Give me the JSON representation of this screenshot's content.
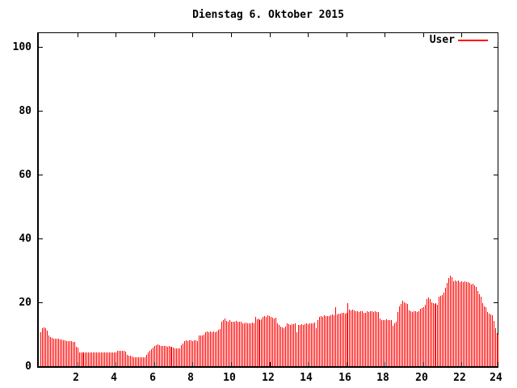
{
  "title": "Dienstag 6. Oktober 2015",
  "legend": {
    "label": "User",
    "color": "#ff0000"
  },
  "colors": {
    "bar": "#ff0000",
    "axis": "#000000",
    "background": "#ffffff"
  },
  "axes": {
    "x": {
      "min": 0,
      "max": 24,
      "ticks": [
        2,
        4,
        6,
        8,
        10,
        12,
        14,
        16,
        18,
        20,
        22,
        24
      ]
    },
    "y": {
      "min": 0,
      "max": 100,
      "ticks": [
        0,
        20,
        40,
        60,
        80,
        100
      ]
    }
  },
  "chart_data": {
    "type": "bar",
    "title": "Dienstag 6. Oktober 2015",
    "xlabel": "",
    "ylabel": "",
    "xlim": [
      0,
      24
    ],
    "ylim": [
      0,
      105
    ],
    "grid": false,
    "legend_position": "top-right-inside",
    "x_unit": "hour_of_day",
    "x_start_hour": 0.0833,
    "x_step_hour": 0.0833,
    "series": [
      {
        "name": "User",
        "color": "#ff0000",
        "values_by_hour": [
          [
            10.5,
            12.0,
            12.2,
            12.0,
            11.0,
            9.5,
            9.2,
            8.8,
            8.7,
            8.6,
            8.5,
            8.5
          ],
          [
            8.4,
            8.3,
            8.2,
            8.0,
            7.9,
            7.8,
            7.8,
            7.9,
            7.7,
            7.6,
            6.0,
            5.7
          ],
          [
            4.3,
            4.2,
            4.2,
            4.3,
            4.2,
            4.2,
            4.2,
            4.3,
            4.2,
            4.2,
            4.3,
            4.2
          ],
          [
            4.2,
            4.3,
            4.2,
            4.2,
            4.3,
            4.2,
            4.2,
            4.2,
            4.3,
            4.2,
            4.2,
            4.3
          ],
          [
            4.7,
            4.8,
            4.7,
            4.8,
            4.7,
            4.6,
            3.5,
            3.3,
            3.2,
            3.0,
            2.9,
            2.9
          ],
          [
            2.8,
            2.8,
            2.8,
            2.9,
            2.8,
            2.8,
            3.5,
            4.2,
            4.8,
            5.3,
            5.8,
            6.2
          ],
          [
            6.5,
            6.8,
            6.7,
            6.3,
            6.2,
            6.3,
            6.2,
            6.1,
            6.2,
            6.1,
            6.0,
            5.9
          ],
          [
            5.6,
            5.5,
            5.5,
            5.6,
            6.5,
            7.0,
            7.8,
            8.0,
            7.9,
            8.0,
            8.0,
            7.9
          ],
          [
            8.0,
            8.0,
            7.9,
            9.5,
            9.7,
            9.6,
            9.8,
            10.5,
            10.8,
            10.7,
            10.8,
            10.6
          ],
          [
            10.8,
            10.7,
            10.8,
            11.5,
            11.7,
            14.0,
            14.5,
            15.0,
            14.2,
            14.0,
            14.3,
            14.0
          ],
          [
            13.8,
            14.0,
            14.2,
            13.9,
            14.0,
            13.8,
            13.5,
            13.4,
            13.6,
            13.3,
            13.5,
            13.4
          ],
          [
            13.6,
            13.5,
            15.4,
            14.6,
            14.8,
            14.5,
            14.7,
            15.5,
            15.8,
            15.5,
            16.0,
            15.7
          ],
          [
            15.5,
            15.2,
            15.0,
            15.1,
            13.5,
            13.0,
            12.5,
            12.2,
            12.0,
            12.3,
            13.4,
            13.2
          ],
          [
            13.0,
            13.2,
            13.1,
            13.3,
            10.5,
            12.8,
            13.0,
            13.2,
            13.0,
            13.1,
            13.3,
            13.2
          ],
          [
            13.4,
            13.3,
            13.5,
            13.6,
            12.0,
            14.5,
            15.5,
            15.8,
            15.5,
            15.9,
            15.6,
            15.8
          ],
          [
            15.7,
            15.9,
            16.2,
            16.0,
            18.5,
            16.3,
            16.5,
            16.4,
            16.6,
            16.8,
            16.5,
            16.7
          ],
          [
            19.7,
            17.8,
            17.5,
            17.6,
            17.4,
            17.2,
            17.3,
            17.0,
            17.2,
            17.1,
            16.8,
            16.6
          ],
          [
            17.2,
            17.0,
            17.1,
            17.2,
            17.0,
            17.1,
            16.9,
            17.0,
            15.0,
            14.5,
            14.3,
            14.4
          ],
          [
            14.6,
            14.4,
            14.5,
            14.3,
            12.6,
            13.5,
            14.0,
            17.0,
            18.6,
            19.5,
            20.5,
            20.0
          ],
          [
            19.8,
            19.5,
            17.5,
            17.2,
            17.0,
            17.1,
            17.3,
            17.0,
            17.2,
            18.0,
            18.2,
            18.4
          ],
          [
            19.3,
            21.0,
            21.4,
            20.9,
            20.1,
            19.7,
            19.5,
            19.7,
            19.3,
            21.8,
            22.0,
            22.2
          ],
          [
            23.0,
            24.5,
            26.0,
            27.5,
            28.3,
            27.8,
            26.5,
            26.8,
            26.5,
            26.7,
            26.4,
            26.6
          ],
          [
            26.3,
            26.5,
            26.2,
            26.4,
            26.0,
            25.5,
            25.8,
            25.3,
            24.8,
            23.5,
            22.5,
            21.8
          ],
          [
            19.7,
            18.8,
            18.4,
            17.0,
            16.5,
            16.3,
            16.0,
            14.2,
            12.0,
            10.4,
            9.8,
            9.5
          ]
        ]
      }
    ]
  }
}
